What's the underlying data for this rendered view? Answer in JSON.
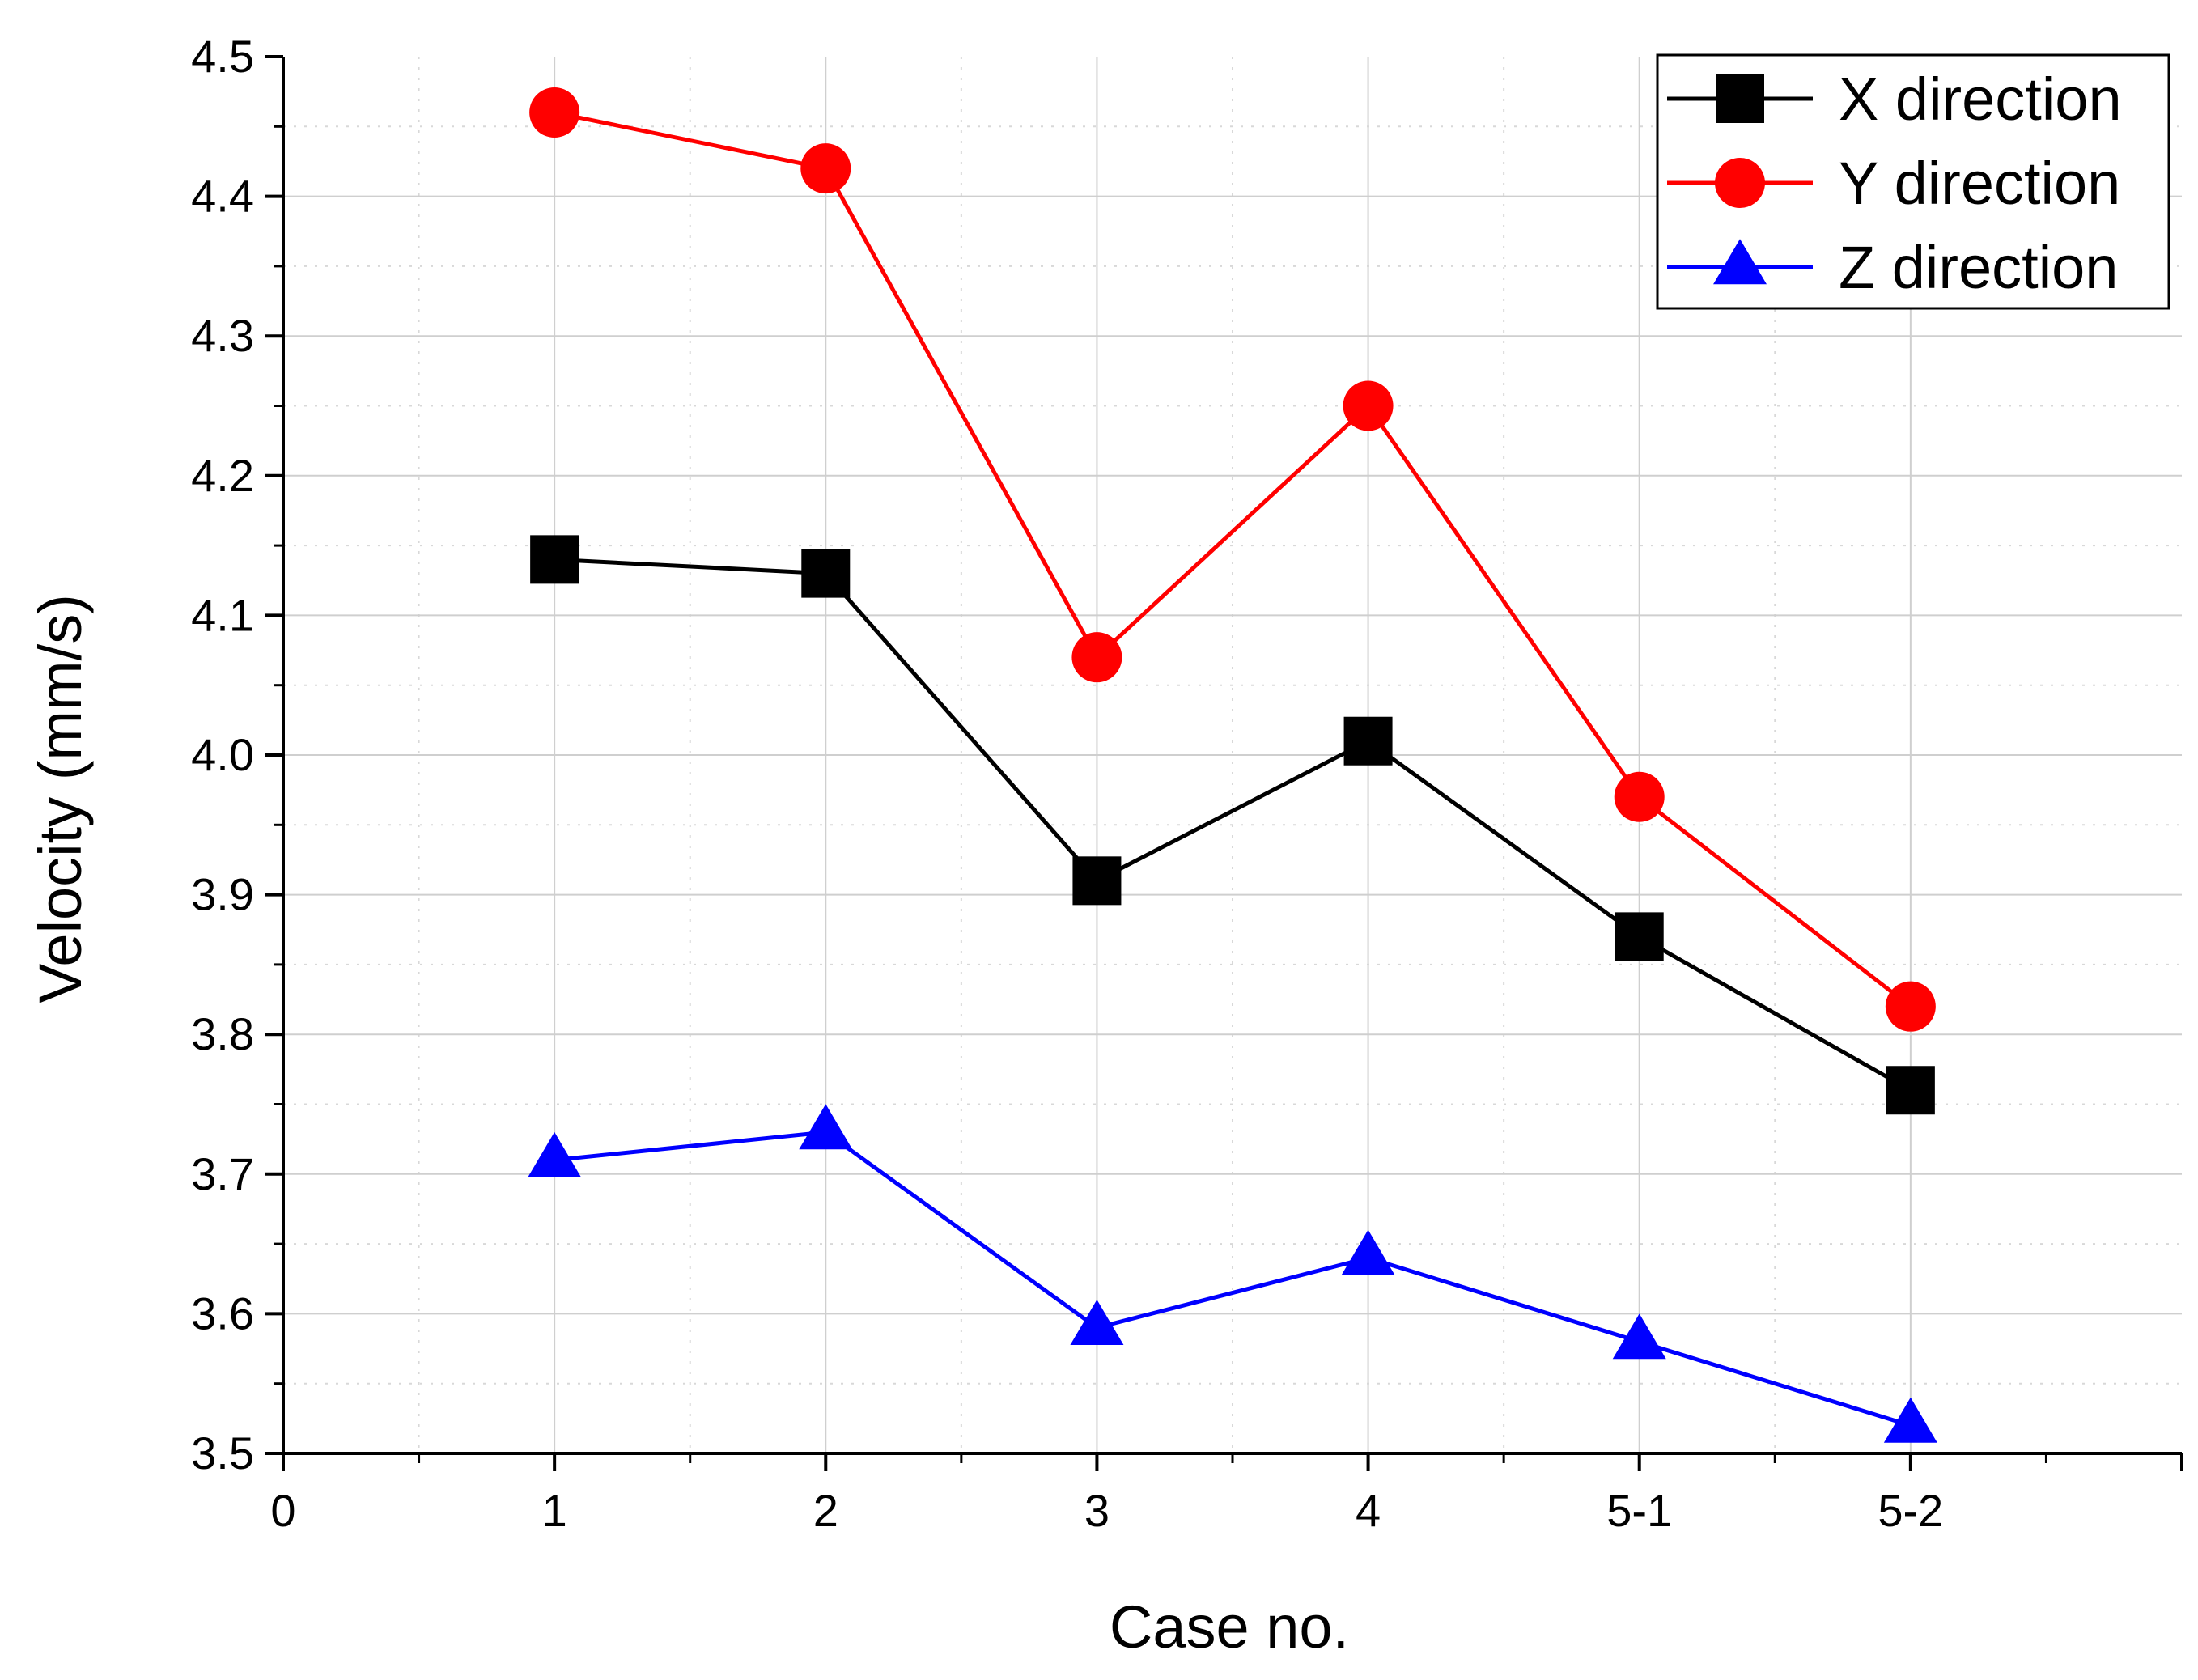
{
  "chart_data": {
    "type": "line",
    "title": "",
    "xlabel": "Case no.",
    "ylabel": "Velocity (mm/s)",
    "x_ticks": [
      "0",
      "1",
      "2",
      "3",
      "4",
      "5-1",
      "5-2"
    ],
    "y_ticks": [
      "3.5",
      "3.6",
      "3.7",
      "3.8",
      "3.9",
      "4.0",
      "4.1",
      "4.2",
      "4.3",
      "4.4",
      "4.5"
    ],
    "ylim": [
      3.5,
      4.5
    ],
    "xlim": [
      0,
      7
    ],
    "grid": true,
    "legend_position": "top-right",
    "categories": [
      "1",
      "2",
      "3",
      "4",
      "5-1",
      "5-2"
    ],
    "series": [
      {
        "name": "X direction",
        "color": "#000000",
        "marker": "square",
        "values": [
          4.14,
          4.13,
          3.91,
          4.01,
          3.87,
          3.76
        ]
      },
      {
        "name": "Y direction",
        "color": "#ff0000",
        "marker": "circle",
        "values": [
          4.46,
          4.42,
          4.07,
          4.25,
          3.97,
          3.82
        ]
      },
      {
        "name": "Z direction",
        "color": "#0000ff",
        "marker": "triangle",
        "values": [
          3.71,
          3.73,
          3.59,
          3.64,
          3.58,
          3.52
        ]
      }
    ]
  }
}
